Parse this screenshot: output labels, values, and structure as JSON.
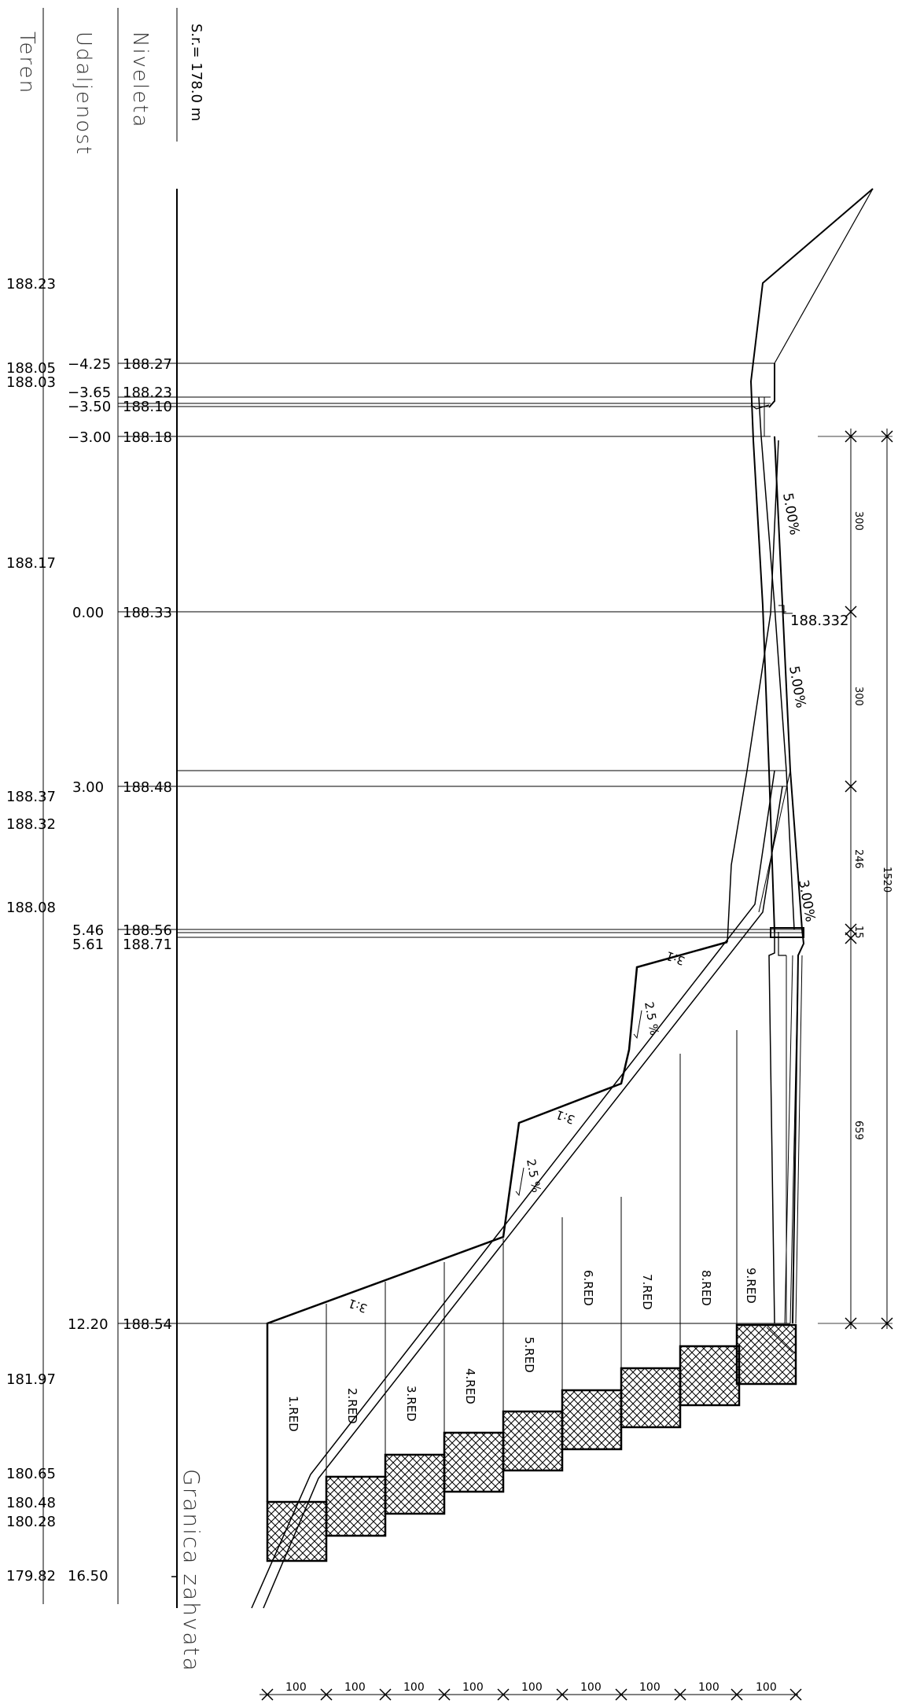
{
  "header": {
    "teren": "Teren",
    "udaljenost": "Udaljenost",
    "niveleta": "Niveleta",
    "scale": "S.r.= 178.0 m"
  },
  "stations": [
    {
      "udaljenost": "−4.25",
      "niveleta": "188.27"
    },
    {
      "udaljenost": "−3.65",
      "niveleta": "188.23"
    },
    {
      "udaljenost": "−3.50",
      "niveleta": "188.10"
    },
    {
      "udaljenost": "−3.00",
      "niveleta": "188.18"
    },
    {
      "udaljenost": "0.00",
      "niveleta": "188.33"
    },
    {
      "udaljenost": "3.00",
      "niveleta": "188.48"
    },
    {
      "udaljenost": "5.46",
      "niveleta": "188.56"
    },
    {
      "udaljenost": "5.61",
      "niveleta": "188.71"
    },
    {
      "udaljenost": "12.20",
      "niveleta": "188.54"
    },
    {
      "udaljenost": "16.50",
      "niveleta": ""
    }
  ],
  "teren_values": [
    "188.23",
    "188.05",
    "188.03",
    "188.17",
    "188.37",
    "188.32",
    "188.08",
    "181.97",
    "180.65",
    "180.48",
    "180.28",
    "179.82"
  ],
  "slopes": {
    "top": "5.00%",
    "middle": "5.00%",
    "lower": "3.00%"
  },
  "elevation_mark": "188.332",
  "embankment_ratio": "3:1",
  "berm_slope": "2.5 %",
  "rows": [
    "1.RED",
    "2.RED",
    "3.RED",
    "4.RED",
    "5.RED",
    "6.RED",
    "7.RED",
    "8.RED",
    "9.RED"
  ],
  "dimensions_right": [
    "300",
    "300",
    "246",
    "15",
    "659",
    "1520"
  ],
  "dimensions_bottom": [
    "100",
    "100",
    "100",
    "100",
    "100",
    "100",
    "100",
    "100",
    "100"
  ],
  "boundary_label": "Granica zahvata"
}
